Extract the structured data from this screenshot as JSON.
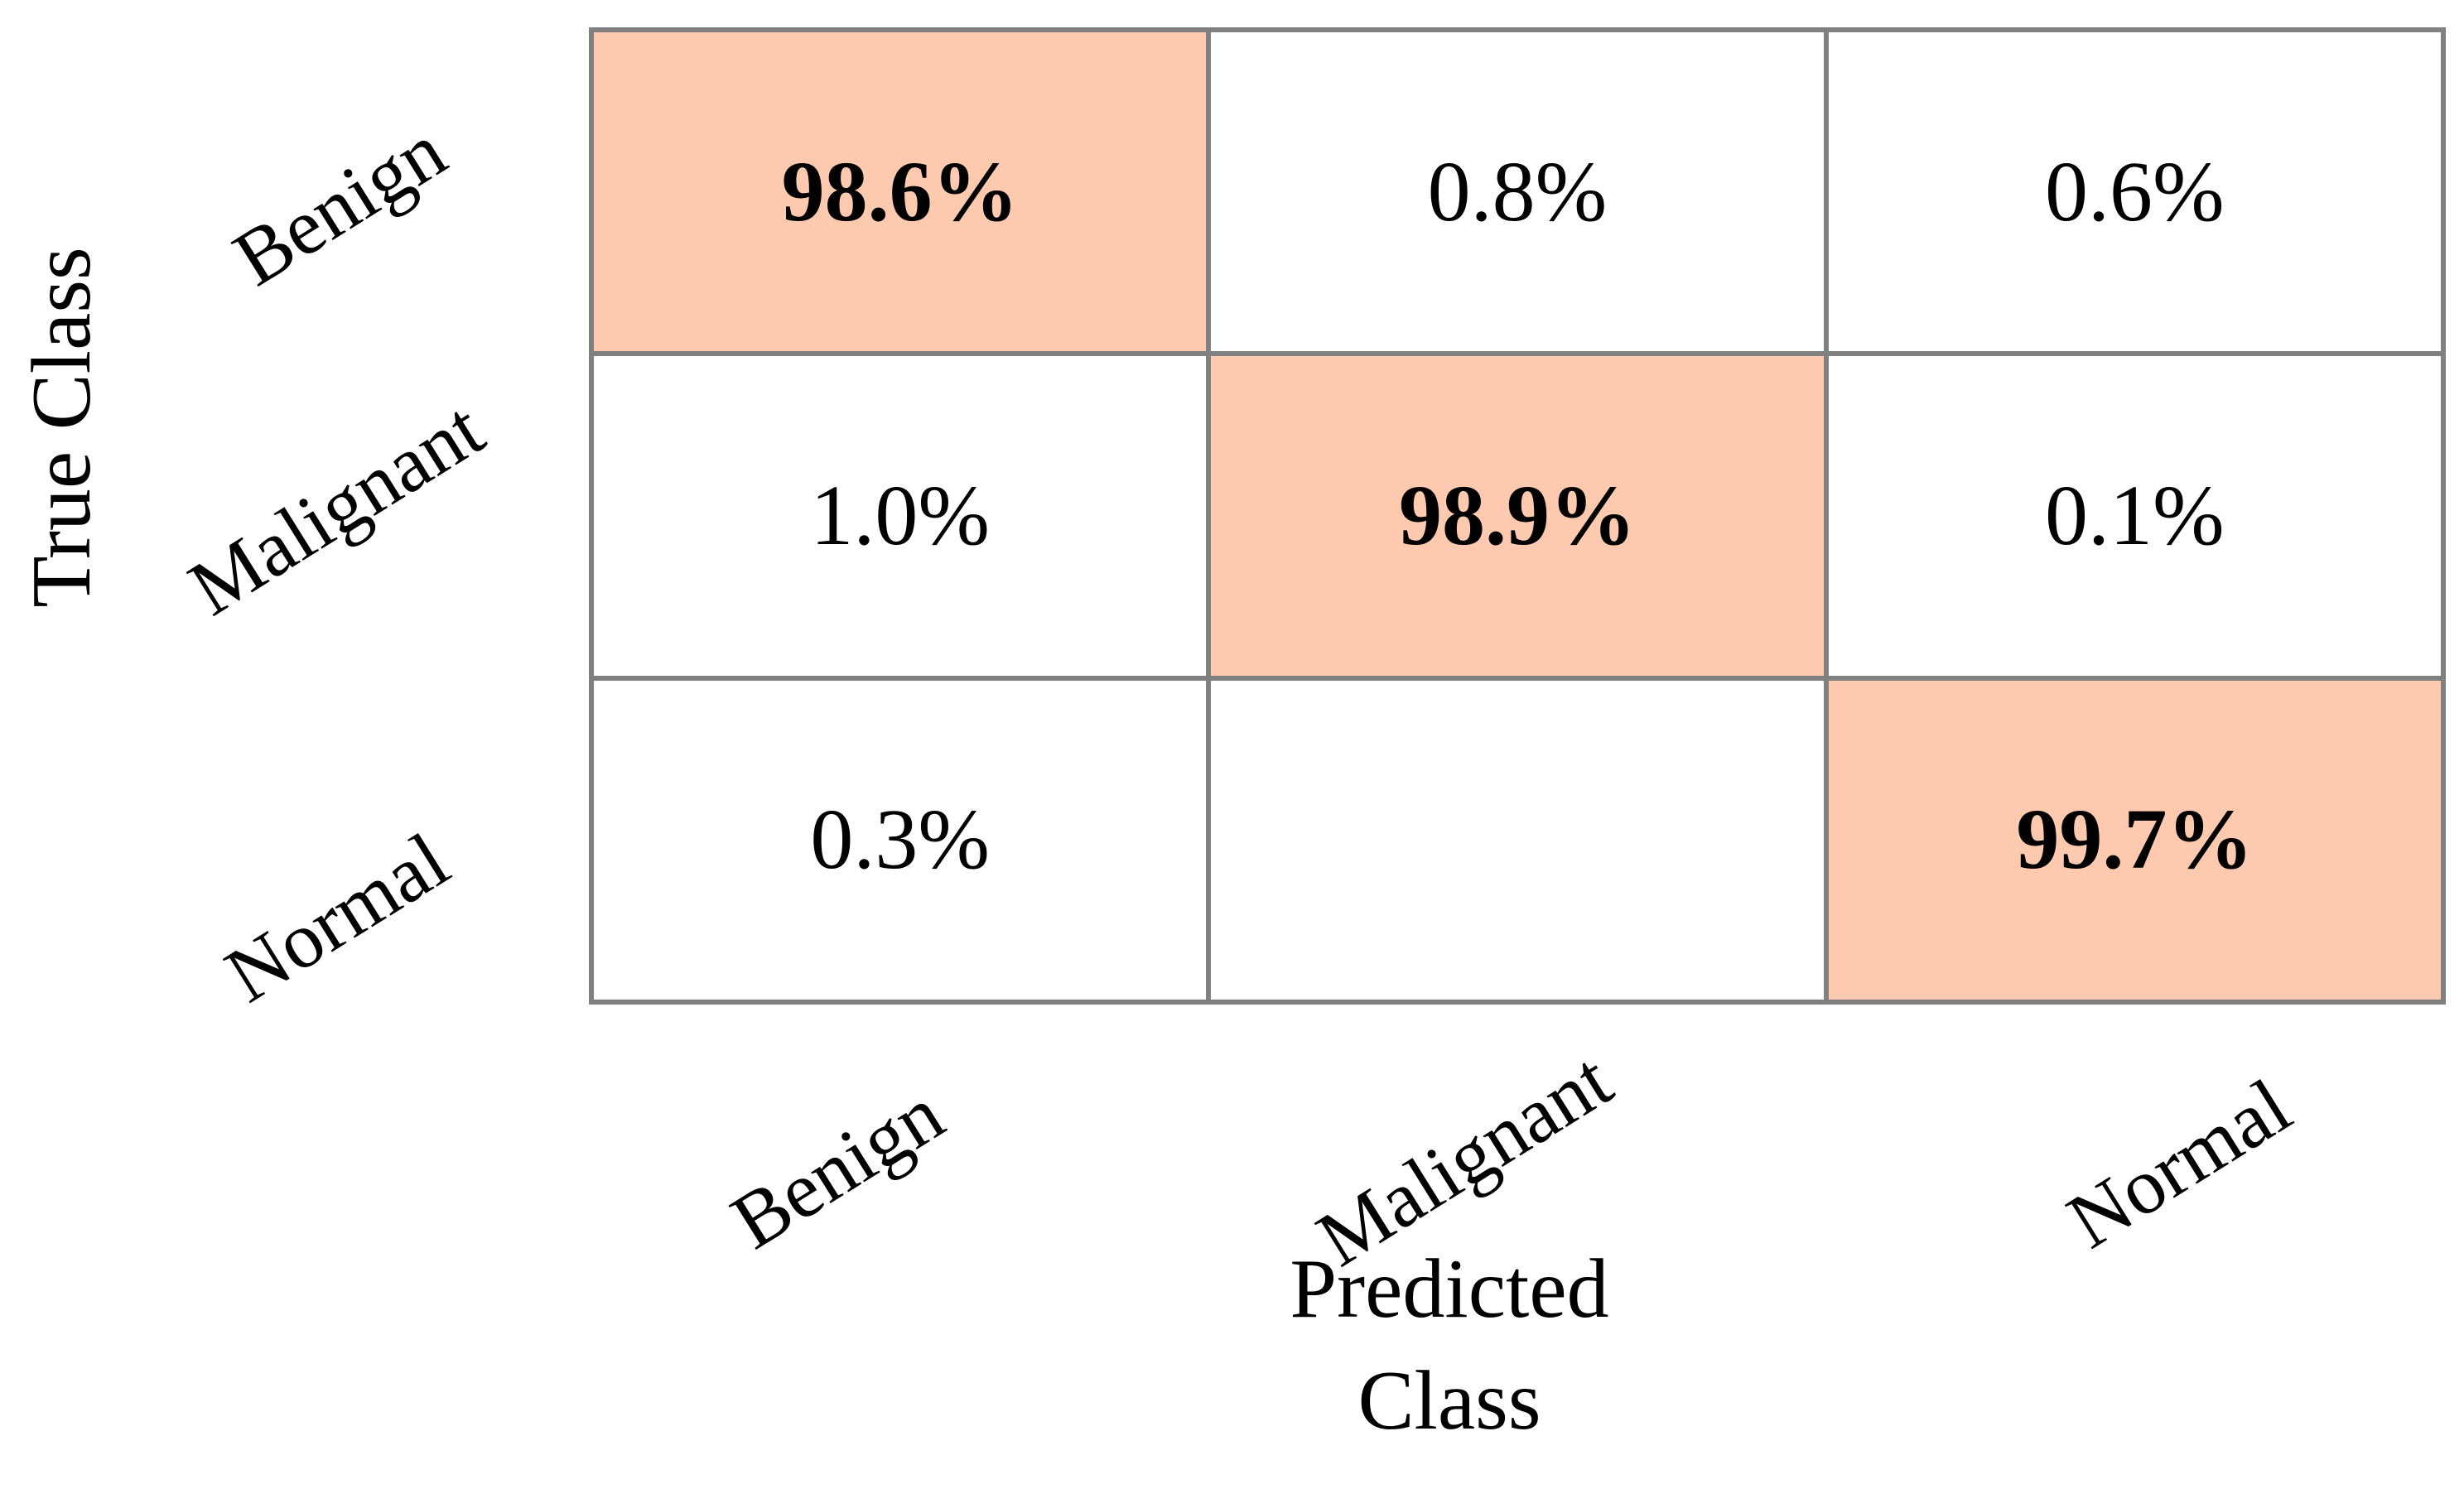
{
  "chart_data": {
    "type": "heatmap",
    "subtype": "confusion-matrix",
    "xlabel": "Predicted Class",
    "xlabel_lines": [
      "Predicted",
      "Class"
    ],
    "ylabel": "True Class",
    "classes": [
      "Benign",
      "Malignant",
      "Normal"
    ],
    "categories_x": [
      "Benign",
      "Malignant",
      "Normal"
    ],
    "categories_y": [
      "Benign",
      "Malignant",
      "Normal"
    ],
    "matrix_percent": [
      [
        98.6,
        0.8,
        0.6
      ],
      [
        1.0,
        98.9,
        0.1
      ],
      [
        0.3,
        null,
        99.7
      ]
    ],
    "cells": [
      {
        "row": "Benign",
        "col": "Benign",
        "label": "98.6%",
        "diagonal": true
      },
      {
        "row": "Benign",
        "col": "Malignant",
        "label": "0.8%",
        "diagonal": false
      },
      {
        "row": "Benign",
        "col": "Normal",
        "label": "0.6%",
        "diagonal": false
      },
      {
        "row": "Malignant",
        "col": "Benign",
        "label": "1.0%",
        "diagonal": false
      },
      {
        "row": "Malignant",
        "col": "Malignant",
        "label": "98.9%",
        "diagonal": true
      },
      {
        "row": "Malignant",
        "col": "Normal",
        "label": "0.1%",
        "diagonal": false
      },
      {
        "row": "Normal",
        "col": "Benign",
        "label": "0.3%",
        "diagonal": false
      },
      {
        "row": "Normal",
        "col": "Malignant",
        "label": "",
        "diagonal": false
      },
      {
        "row": "Normal",
        "col": "Normal",
        "label": "99.7%",
        "diagonal": true
      }
    ],
    "colors": {
      "diagonal_fill": "#fdcaaf",
      "off_diagonal_fill": "#ffffff",
      "grid_line": "#808080",
      "text": "#000000"
    },
    "layout": {
      "tick_label_rotation_deg": -32,
      "grid_on": true,
      "legend": "none"
    }
  }
}
